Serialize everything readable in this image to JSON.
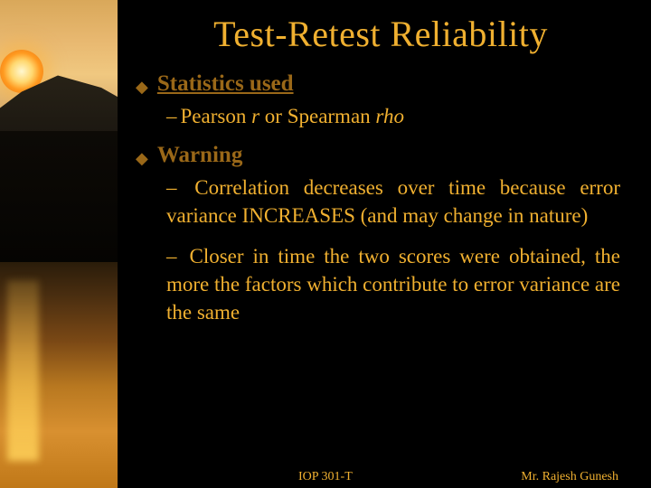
{
  "colors": {
    "title": "#f0b030",
    "heading": "#9a6818",
    "body": "#f0b030",
    "background": "#000000"
  },
  "title": "Test-Retest Reliability",
  "sections": [
    {
      "heading": "Statistics used",
      "underline": true,
      "items": [
        {
          "pre": "Pearson ",
          "em1": "r",
          "mid": " or Spearman ",
          "em2": "rho",
          "justify": false
        }
      ]
    },
    {
      "heading": "Warning",
      "underline": false,
      "items": [
        {
          "text": "Correlation decreases over time because error variance INCREASES (and may change in nature)",
          "justify": true
        },
        {
          "text": "Closer in time the two scores were obtained, the more the factors which contribute to error variance are the same",
          "justify": true
        }
      ]
    }
  ],
  "footer": {
    "course": "IOP 301-T",
    "author": "Mr. Rajesh Gunesh"
  }
}
